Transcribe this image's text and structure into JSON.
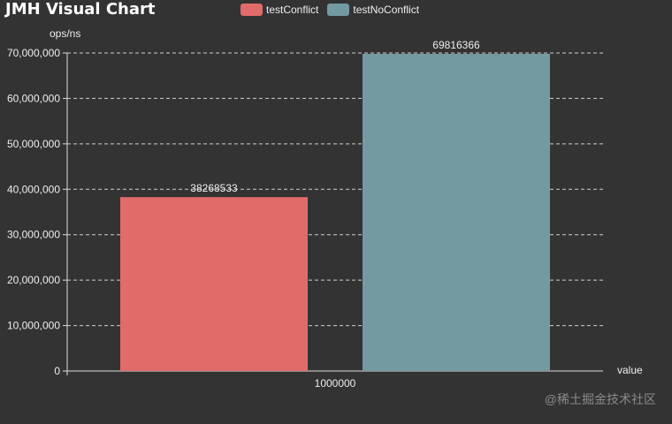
{
  "app": {
    "title": "JMH Visual Chart",
    "watermark": "@稀土掘金技术社区"
  },
  "colors": {
    "background": "#333333",
    "testConflict": "#e06c6a",
    "testNoConflict": "#739aa0",
    "axis": "#dddddd"
  },
  "chart_data": {
    "type": "bar",
    "title": "JMH Visual Chart",
    "ylabel": "ops/ns",
    "xlabel": "value",
    "categories": [
      "1000000"
    ],
    "series": [
      {
        "name": "testConflict",
        "values": [
          38268533
        ],
        "color": "#e06c6a"
      },
      {
        "name": "testNoConflict",
        "values": [
          69816366
        ],
        "color": "#739aa0"
      }
    ],
    "ylim": [
      0,
      70000000
    ],
    "yticks": [
      "0",
      "10,000,000",
      "20,000,000",
      "30,000,000",
      "40,000,000",
      "50,000,000",
      "60,000,000",
      "70,000,000"
    ],
    "data_labels": [
      "38268533",
      "69816366"
    ],
    "grid": true,
    "legend_position": "top-center"
  }
}
